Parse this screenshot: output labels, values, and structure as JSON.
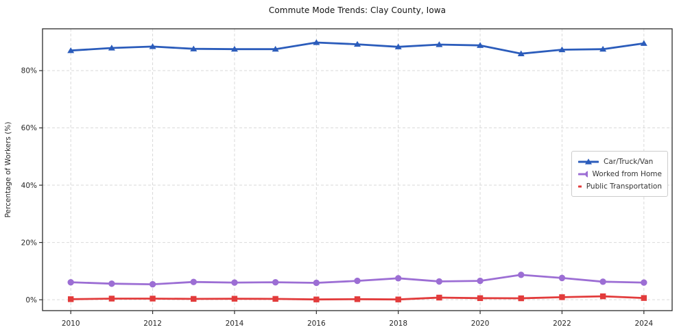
{
  "figure": {
    "background": "#ffffff"
  },
  "chart_data": {
    "type": "line",
    "title": "Commute Mode Trends: Clay County, Iowa",
    "ylabel": "Percentage of Workers (%)",
    "xlabel": "",
    "x": [
      2010,
      2011,
      2012,
      2013,
      2014,
      2015,
      2016,
      2017,
      2018,
      2019,
      2020,
      2021,
      2022,
      2023,
      2024
    ],
    "series": [
      {
        "name": "Car/Truck/Van",
        "color": "#2b5cbb",
        "marker": "triangle-up",
        "values": [
          87.0,
          87.9,
          88.4,
          87.6,
          87.5,
          87.5,
          89.8,
          89.2,
          88.3,
          89.1,
          88.8,
          85.9,
          87.3,
          87.5,
          89.5
        ]
      },
      {
        "name": "Worked from Home",
        "color": "#9c6ed4",
        "marker": "circle",
        "values": [
          6.1,
          5.6,
          5.4,
          6.2,
          6.0,
          6.1,
          5.9,
          6.6,
          7.5,
          6.4,
          6.6,
          8.7,
          7.6,
          6.3,
          6.0
        ]
      },
      {
        "name": "Public Transportation",
        "color": "#e23b3b",
        "marker": "square",
        "values": [
          0.2,
          0.4,
          0.4,
          0.3,
          0.35,
          0.3,
          0.1,
          0.2,
          0.1,
          0.75,
          0.55,
          0.5,
          0.9,
          1.2,
          0.6
        ]
      }
    ],
    "xticks": {
      "values": [
        2010,
        2012,
        2014,
        2016,
        2018,
        2020,
        2022,
        2024
      ],
      "labels": [
        "2010",
        "2012",
        "2014",
        "2016",
        "2018",
        "2020",
        "2022",
        "2024"
      ]
    },
    "yticks": {
      "values": [
        0,
        20,
        40,
        60,
        80
      ],
      "labels": [
        "0%",
        "20%",
        "40%",
        "60%",
        "80%"
      ]
    },
    "xlim": [
      2009.31,
      2024.69
    ],
    "ylim": [
      -3.8,
      94.6
    ],
    "grid": true,
    "grid_color": "#d9d9d9",
    "axis_color": "#2b2b2b",
    "tick_label_color": "#262626",
    "legend": {
      "position": "center-right",
      "border_color": "#cccccc",
      "background": "#ffffff"
    }
  }
}
